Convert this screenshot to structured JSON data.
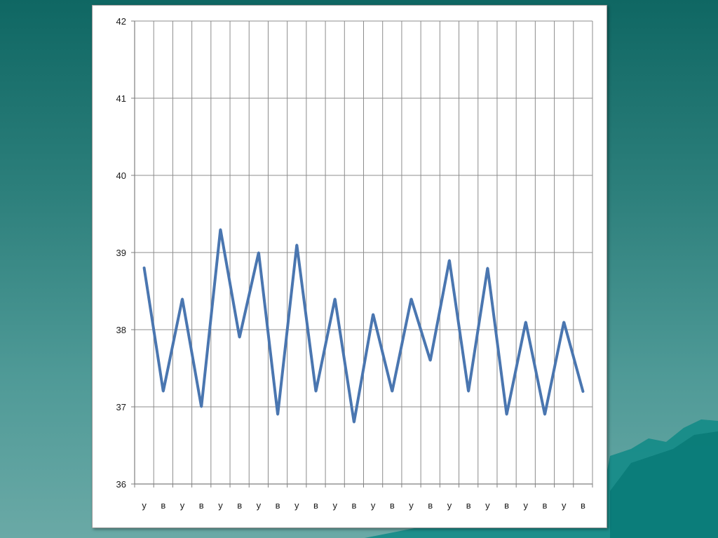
{
  "chart_data": {
    "type": "line",
    "categories": [
      "у",
      "в",
      "у",
      "в",
      "у",
      "в",
      "у",
      "в",
      "у",
      "в",
      "у",
      "в",
      "у",
      "в",
      "у",
      "в",
      "у",
      "в",
      "у",
      "в",
      "у",
      "в",
      "у",
      "в"
    ],
    "series": [
      {
        "values": [
          38.8,
          37.2,
          38.4,
          37.0,
          39.3,
          37.9,
          39.0,
          36.9,
          39.1,
          37.2,
          38.4,
          36.8,
          38.2,
          37.2,
          38.4,
          37.6,
          38.9,
          37.2,
          38.8,
          36.9,
          38.1,
          36.9,
          38.1,
          37.2
        ]
      }
    ],
    "yticks": [
      "36",
      "37",
      "38",
      "39",
      "40",
      "41",
      "42"
    ],
    "ylim": [
      36,
      42
    ],
    "grid": true,
    "colors": {
      "line": "#4a76b0",
      "grid": "#8c8c8c",
      "axis": "#7f7f7f"
    }
  }
}
